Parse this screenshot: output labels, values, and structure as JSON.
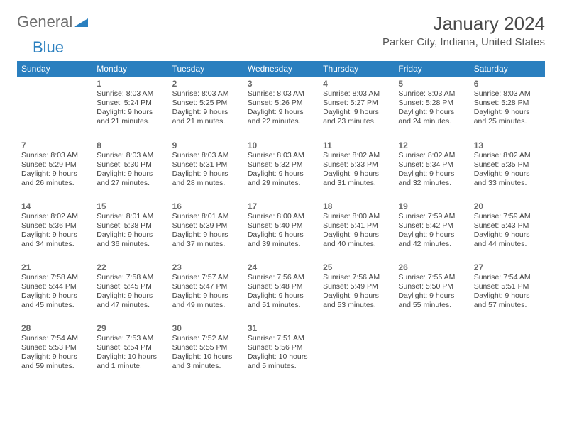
{
  "branding": {
    "word1": "General",
    "word2": "Blue",
    "word1_color": "#6e6e6e",
    "word2_color": "#2a7fbf",
    "triangle_color": "#2a7fbf"
  },
  "header": {
    "month_title": "January 2024",
    "location": "Parker City, Indiana, United States",
    "title_color": "#4a4a4a",
    "title_fontsize": 26,
    "location_color": "#555555",
    "location_fontsize": 15
  },
  "calendar": {
    "type": "table",
    "header_bg": "#2a7fbf",
    "header_text_color": "#ffffff",
    "row_border_color": "#2a7fbf",
    "daynum_color": "#6a6a6a",
    "info_color": "#444444",
    "info_fontsize": 10.5,
    "columns": [
      "Sunday",
      "Monday",
      "Tuesday",
      "Wednesday",
      "Thursday",
      "Friday",
      "Saturday"
    ],
    "weeks": [
      [
        null,
        {
          "n": "1",
          "l1": "Sunrise: 8:03 AM",
          "l2": "Sunset: 5:24 PM",
          "l3": "Daylight: 9 hours",
          "l4": "and 21 minutes."
        },
        {
          "n": "2",
          "l1": "Sunrise: 8:03 AM",
          "l2": "Sunset: 5:25 PM",
          "l3": "Daylight: 9 hours",
          "l4": "and 21 minutes."
        },
        {
          "n": "3",
          "l1": "Sunrise: 8:03 AM",
          "l2": "Sunset: 5:26 PM",
          "l3": "Daylight: 9 hours",
          "l4": "and 22 minutes."
        },
        {
          "n": "4",
          "l1": "Sunrise: 8:03 AM",
          "l2": "Sunset: 5:27 PM",
          "l3": "Daylight: 9 hours",
          "l4": "and 23 minutes."
        },
        {
          "n": "5",
          "l1": "Sunrise: 8:03 AM",
          "l2": "Sunset: 5:28 PM",
          "l3": "Daylight: 9 hours",
          "l4": "and 24 minutes."
        },
        {
          "n": "6",
          "l1": "Sunrise: 8:03 AM",
          "l2": "Sunset: 5:28 PM",
          "l3": "Daylight: 9 hours",
          "l4": "and 25 minutes."
        }
      ],
      [
        {
          "n": "7",
          "l1": "Sunrise: 8:03 AM",
          "l2": "Sunset: 5:29 PM",
          "l3": "Daylight: 9 hours",
          "l4": "and 26 minutes."
        },
        {
          "n": "8",
          "l1": "Sunrise: 8:03 AM",
          "l2": "Sunset: 5:30 PM",
          "l3": "Daylight: 9 hours",
          "l4": "and 27 minutes."
        },
        {
          "n": "9",
          "l1": "Sunrise: 8:03 AM",
          "l2": "Sunset: 5:31 PM",
          "l3": "Daylight: 9 hours",
          "l4": "and 28 minutes."
        },
        {
          "n": "10",
          "l1": "Sunrise: 8:03 AM",
          "l2": "Sunset: 5:32 PM",
          "l3": "Daylight: 9 hours",
          "l4": "and 29 minutes."
        },
        {
          "n": "11",
          "l1": "Sunrise: 8:02 AM",
          "l2": "Sunset: 5:33 PM",
          "l3": "Daylight: 9 hours",
          "l4": "and 31 minutes."
        },
        {
          "n": "12",
          "l1": "Sunrise: 8:02 AM",
          "l2": "Sunset: 5:34 PM",
          "l3": "Daylight: 9 hours",
          "l4": "and 32 minutes."
        },
        {
          "n": "13",
          "l1": "Sunrise: 8:02 AM",
          "l2": "Sunset: 5:35 PM",
          "l3": "Daylight: 9 hours",
          "l4": "and 33 minutes."
        }
      ],
      [
        {
          "n": "14",
          "l1": "Sunrise: 8:02 AM",
          "l2": "Sunset: 5:36 PM",
          "l3": "Daylight: 9 hours",
          "l4": "and 34 minutes."
        },
        {
          "n": "15",
          "l1": "Sunrise: 8:01 AM",
          "l2": "Sunset: 5:38 PM",
          "l3": "Daylight: 9 hours",
          "l4": "and 36 minutes."
        },
        {
          "n": "16",
          "l1": "Sunrise: 8:01 AM",
          "l2": "Sunset: 5:39 PM",
          "l3": "Daylight: 9 hours",
          "l4": "and 37 minutes."
        },
        {
          "n": "17",
          "l1": "Sunrise: 8:00 AM",
          "l2": "Sunset: 5:40 PM",
          "l3": "Daylight: 9 hours",
          "l4": "and 39 minutes."
        },
        {
          "n": "18",
          "l1": "Sunrise: 8:00 AM",
          "l2": "Sunset: 5:41 PM",
          "l3": "Daylight: 9 hours",
          "l4": "and 40 minutes."
        },
        {
          "n": "19",
          "l1": "Sunrise: 7:59 AM",
          "l2": "Sunset: 5:42 PM",
          "l3": "Daylight: 9 hours",
          "l4": "and 42 minutes."
        },
        {
          "n": "20",
          "l1": "Sunrise: 7:59 AM",
          "l2": "Sunset: 5:43 PM",
          "l3": "Daylight: 9 hours",
          "l4": "and 44 minutes."
        }
      ],
      [
        {
          "n": "21",
          "l1": "Sunrise: 7:58 AM",
          "l2": "Sunset: 5:44 PM",
          "l3": "Daylight: 9 hours",
          "l4": "and 45 minutes."
        },
        {
          "n": "22",
          "l1": "Sunrise: 7:58 AM",
          "l2": "Sunset: 5:45 PM",
          "l3": "Daylight: 9 hours",
          "l4": "and 47 minutes."
        },
        {
          "n": "23",
          "l1": "Sunrise: 7:57 AM",
          "l2": "Sunset: 5:47 PM",
          "l3": "Daylight: 9 hours",
          "l4": "and 49 minutes."
        },
        {
          "n": "24",
          "l1": "Sunrise: 7:56 AM",
          "l2": "Sunset: 5:48 PM",
          "l3": "Daylight: 9 hours",
          "l4": "and 51 minutes."
        },
        {
          "n": "25",
          "l1": "Sunrise: 7:56 AM",
          "l2": "Sunset: 5:49 PM",
          "l3": "Daylight: 9 hours",
          "l4": "and 53 minutes."
        },
        {
          "n": "26",
          "l1": "Sunrise: 7:55 AM",
          "l2": "Sunset: 5:50 PM",
          "l3": "Daylight: 9 hours",
          "l4": "and 55 minutes."
        },
        {
          "n": "27",
          "l1": "Sunrise: 7:54 AM",
          "l2": "Sunset: 5:51 PM",
          "l3": "Daylight: 9 hours",
          "l4": "and 57 minutes."
        }
      ],
      [
        {
          "n": "28",
          "l1": "Sunrise: 7:54 AM",
          "l2": "Sunset: 5:53 PM",
          "l3": "Daylight: 9 hours",
          "l4": "and 59 minutes."
        },
        {
          "n": "29",
          "l1": "Sunrise: 7:53 AM",
          "l2": "Sunset: 5:54 PM",
          "l3": "Daylight: 10 hours",
          "l4": "and 1 minute."
        },
        {
          "n": "30",
          "l1": "Sunrise: 7:52 AM",
          "l2": "Sunset: 5:55 PM",
          "l3": "Daylight: 10 hours",
          "l4": "and 3 minutes."
        },
        {
          "n": "31",
          "l1": "Sunrise: 7:51 AM",
          "l2": "Sunset: 5:56 PM",
          "l3": "Daylight: 10 hours",
          "l4": "and 5 minutes."
        },
        null,
        null,
        null
      ]
    ]
  }
}
